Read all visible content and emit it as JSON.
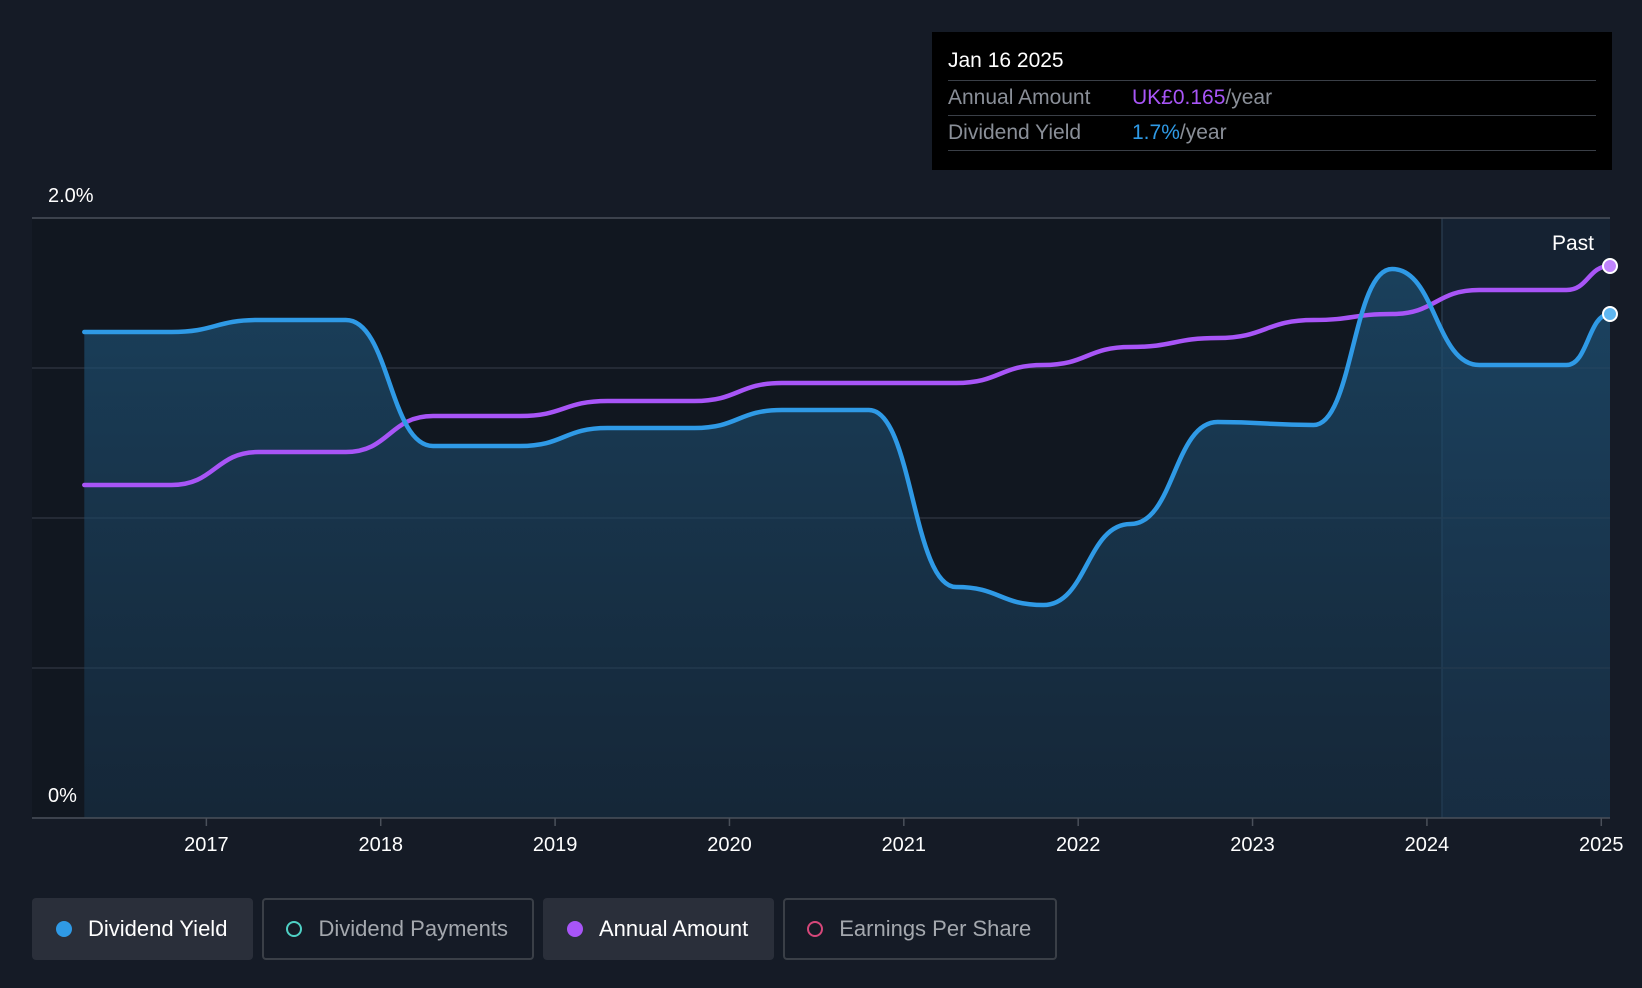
{
  "tooltip": {
    "date": "Jan 16 2025",
    "rows": [
      {
        "label": "Annual Amount",
        "value": "UK£0.165",
        "unit": "/year"
      },
      {
        "label": "Dividend Yield",
        "value": "1.7%",
        "unit": "/year"
      }
    ]
  },
  "past_label": "Past",
  "legend": [
    {
      "label": "Dividend Yield",
      "color": "#2f9ae6",
      "active": true,
      "filled": true
    },
    {
      "label": "Dividend Payments",
      "color": "#4fd1c5",
      "active": false,
      "filled": false
    },
    {
      "label": "Annual Amount",
      "color": "#a855f7",
      "active": true,
      "filled": true
    },
    {
      "label": "Earnings Per Share",
      "color": "#d6477a",
      "active": false,
      "filled": false
    }
  ],
  "chart_data": {
    "type": "line",
    "ylim": [
      0,
      2.0
    ],
    "y_tick_labels": [
      "0%",
      "2.0%"
    ],
    "xlim": [
      2016.0,
      2025.05
    ],
    "x_tick_labels": [
      "2017",
      "2018",
      "2019",
      "2020",
      "2021",
      "2022",
      "2023",
      "2024",
      "2025"
    ],
    "grid": true,
    "series": [
      {
        "name": "Dividend Yield",
        "color": "#2f9ae6",
        "area": true,
        "points": [
          [
            2016.3,
            1.62
          ],
          [
            2016.8,
            1.62
          ],
          [
            2017.3,
            1.66
          ],
          [
            2017.8,
            1.66
          ],
          [
            2018.3,
            1.24
          ],
          [
            2018.8,
            1.24
          ],
          [
            2019.3,
            1.3
          ],
          [
            2019.8,
            1.3
          ],
          [
            2020.3,
            1.36
          ],
          [
            2020.8,
            1.36
          ],
          [
            2021.3,
            0.77
          ],
          [
            2021.8,
            0.71
          ],
          [
            2022.3,
            0.98
          ],
          [
            2022.8,
            1.32
          ],
          [
            2023.35,
            1.31
          ],
          [
            2023.8,
            1.83
          ],
          [
            2024.3,
            1.51
          ],
          [
            2024.8,
            1.51
          ],
          [
            2025.05,
            1.68
          ]
        ]
      },
      {
        "name": "Annual Amount",
        "color": "#a855f7",
        "area": false,
        "points": [
          [
            2016.3,
            1.11
          ],
          [
            2016.8,
            1.11
          ],
          [
            2017.3,
            1.22
          ],
          [
            2017.8,
            1.22
          ],
          [
            2018.3,
            1.34
          ],
          [
            2018.8,
            1.34
          ],
          [
            2019.3,
            1.39
          ],
          [
            2019.8,
            1.39
          ],
          [
            2020.3,
            1.45
          ],
          [
            2020.8,
            1.45
          ],
          [
            2021.3,
            1.45
          ],
          [
            2021.8,
            1.51
          ],
          [
            2022.3,
            1.57
          ],
          [
            2022.8,
            1.6
          ],
          [
            2023.35,
            1.66
          ],
          [
            2023.8,
            1.68
          ],
          [
            2024.3,
            1.76
          ],
          [
            2024.8,
            1.76
          ],
          [
            2025.05,
            1.84
          ]
        ]
      }
    ]
  }
}
